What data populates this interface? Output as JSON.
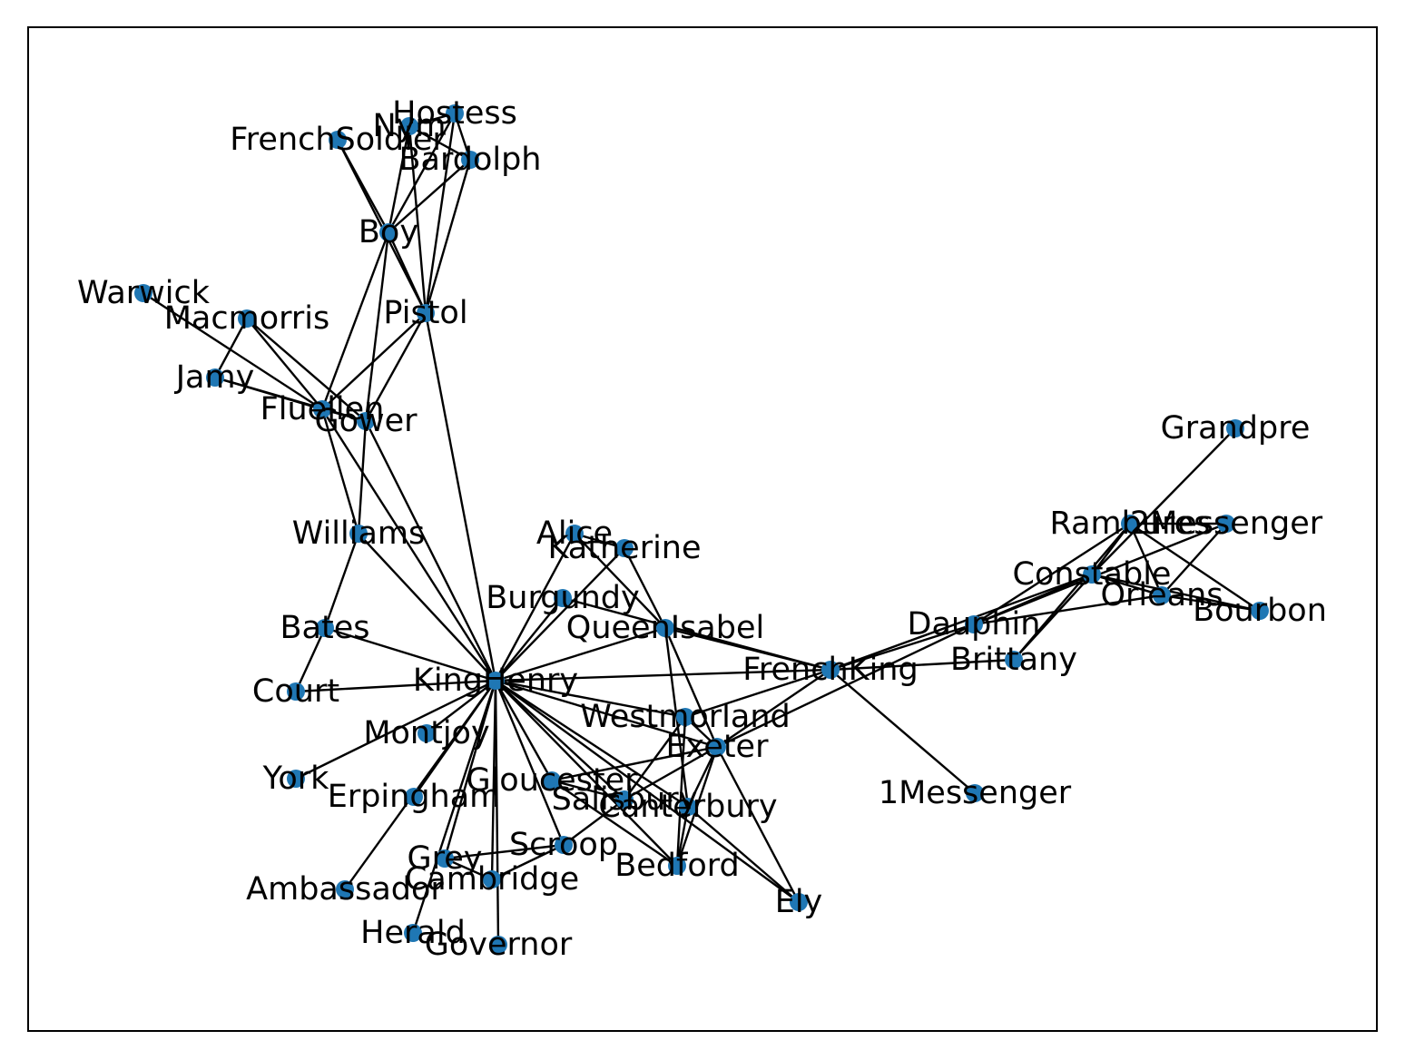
{
  "graph": {
    "node_color": "#1f77b4",
    "edge_color": "#000000",
    "nodes": [
      "Hostess",
      "Nym",
      "FrenchSoldier",
      "Bardolph",
      "Boy",
      "Warwick",
      "Macmorris",
      "Pistol",
      "Jamy",
      "Fluellen",
      "Gower",
      "Grandpre",
      "Rambures",
      "2Messenger",
      "Williams",
      "Alice",
      "Katherine",
      "Constable",
      "Orleans",
      "Bourbon",
      "Burgundy",
      "Dauphin",
      "QueenIsabel",
      "Bates",
      "Brittany",
      "FrenchKing",
      "KingHenry",
      "Court",
      "Westmorland",
      "Exeter",
      "Montjoy",
      "1Messenger",
      "York",
      "Gloucester",
      "Salisbury",
      "Erpingham",
      "Canterbury",
      "Scroop",
      "Grey",
      "Bedford",
      "Cambridge",
      "Ambassador",
      "Ely",
      "Herald",
      "Governor"
    ],
    "edges": [
      [
        "Hostess",
        "Nym"
      ],
      [
        "Hostess",
        "Bardolph"
      ],
      [
        "Hostess",
        "Boy"
      ],
      [
        "Hostess",
        "Pistol"
      ],
      [
        "Nym",
        "Bardolph"
      ],
      [
        "Nym",
        "Boy"
      ],
      [
        "Nym",
        "Pistol"
      ],
      [
        "Bardolph",
        "Boy"
      ],
      [
        "Bardolph",
        "Pistol"
      ],
      [
        "FrenchSoldier",
        "Boy"
      ],
      [
        "FrenchSoldier",
        "Pistol"
      ],
      [
        "Boy",
        "Pistol"
      ],
      [
        "Boy",
        "Fluellen"
      ],
      [
        "Boy",
        "Gower"
      ],
      [
        "Pistol",
        "Fluellen"
      ],
      [
        "Pistol",
        "Gower"
      ],
      [
        "Pistol",
        "KingHenry"
      ],
      [
        "Warwick",
        "Fluellen"
      ],
      [
        "Macmorris",
        "Fluellen"
      ],
      [
        "Macmorris",
        "Gower"
      ],
      [
        "Macmorris",
        "Jamy"
      ],
      [
        "Jamy",
        "Fluellen"
      ],
      [
        "Jamy",
        "Gower"
      ],
      [
        "Fluellen",
        "Gower"
      ],
      [
        "Fluellen",
        "Williams"
      ],
      [
        "Fluellen",
        "KingHenry"
      ],
      [
        "Gower",
        "Williams"
      ],
      [
        "Gower",
        "KingHenry"
      ],
      [
        "Williams",
        "Bates"
      ],
      [
        "Williams",
        "KingHenry"
      ],
      [
        "Bates",
        "Court"
      ],
      [
        "Bates",
        "KingHenry"
      ],
      [
        "Court",
        "KingHenry"
      ],
      [
        "Alice",
        "Katherine"
      ],
      [
        "Alice",
        "QueenIsabel"
      ],
      [
        "Alice",
        "KingHenry"
      ],
      [
        "Katherine",
        "QueenIsabel"
      ],
      [
        "Katherine",
        "KingHenry"
      ],
      [
        "Burgundy",
        "KingHenry"
      ],
      [
        "Burgundy",
        "FrenchKing"
      ],
      [
        "QueenIsabel",
        "FrenchKing"
      ],
      [
        "QueenIsabel",
        "Exeter"
      ],
      [
        "QueenIsabel",
        "KingHenry"
      ],
      [
        "QueenIsabel",
        "Canterbury"
      ],
      [
        "KingHenry",
        "FrenchKing"
      ],
      [
        "KingHenry",
        "Westmorland"
      ],
      [
        "KingHenry",
        "Exeter"
      ],
      [
        "KingHenry",
        "Montjoy"
      ],
      [
        "KingHenry",
        "York"
      ],
      [
        "KingHenry",
        "Gloucester"
      ],
      [
        "KingHenry",
        "Salisbury"
      ],
      [
        "KingHenry",
        "Erpingham"
      ],
      [
        "KingHenry",
        "Canterbury"
      ],
      [
        "KingHenry",
        "Scroop"
      ],
      [
        "KingHenry",
        "Grey"
      ],
      [
        "KingHenry",
        "Bedford"
      ],
      [
        "KingHenry",
        "Cambridge"
      ],
      [
        "KingHenry",
        "Herald"
      ],
      [
        "KingHenry",
        "Governor"
      ],
      [
        "KingHenry",
        "Ely"
      ],
      [
        "KingHenry",
        "Ambassador"
      ],
      [
        "Westmorland",
        "FrenchKing"
      ],
      [
        "Westmorland",
        "Salisbury"
      ],
      [
        "Westmorland",
        "Bedford"
      ],
      [
        "Westmorland",
        "Exeter"
      ],
      [
        "Exeter",
        "FrenchKing"
      ],
      [
        "Exeter",
        "Gloucester"
      ],
      [
        "Exeter",
        "Salisbury"
      ],
      [
        "Exeter",
        "Canterbury"
      ],
      [
        "Exeter",
        "Bedford"
      ],
      [
        "Exeter",
        "Ely"
      ],
      [
        "Exeter",
        "Dauphin"
      ],
      [
        "Gloucester",
        "Bedford"
      ],
      [
        "Gloucester",
        "Salisbury"
      ],
      [
        "Scroop",
        "Grey"
      ],
      [
        "Scroop",
        "Cambridge"
      ],
      [
        "Scroop",
        "Salisbury"
      ],
      [
        "Grey",
        "Cambridge"
      ],
      [
        "Canterbury",
        "Ely"
      ],
      [
        "Canterbury",
        "Bedford"
      ],
      [
        "FrenchKing",
        "Dauphin"
      ],
      [
        "FrenchKing",
        "Brittany"
      ],
      [
        "FrenchKing",
        "Constable"
      ],
      [
        "FrenchKing",
        "1Messenger"
      ],
      [
        "Dauphin",
        "Constable"
      ],
      [
        "Dauphin",
        "Orleans"
      ],
      [
        "Dauphin",
        "Rambures"
      ],
      [
        "Dauphin",
        "2Messenger"
      ],
      [
        "Constable",
        "Orleans"
      ],
      [
        "Constable",
        "Rambures"
      ],
      [
        "Constable",
        "Bourbon"
      ],
      [
        "Constable",
        "Grandpre"
      ],
      [
        "Constable",
        "Brittany"
      ],
      [
        "Orleans",
        "Bourbon"
      ],
      [
        "Orleans",
        "Rambures"
      ],
      [
        "Orleans",
        "2Messenger"
      ],
      [
        "Rambures",
        "Bourbon"
      ],
      [
        "Rambures",
        "Brittany"
      ],
      [
        "Rambures",
        "2Messenger"
      ]
    ]
  }
}
